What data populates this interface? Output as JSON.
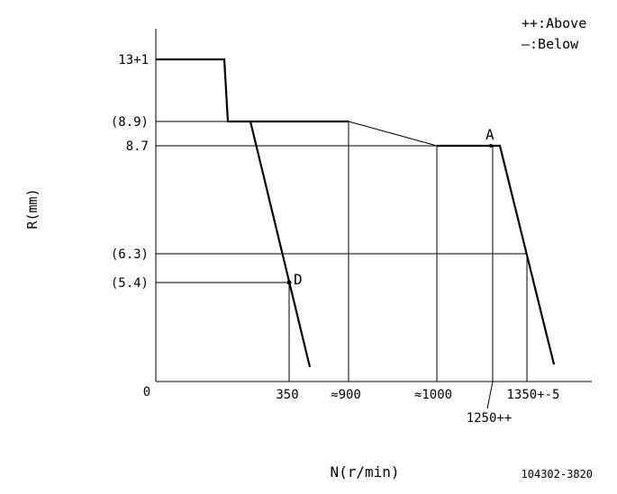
{
  "chart_data": {
    "type": "line",
    "title": "",
    "xlabel": "N(r/min)",
    "ylabel": "R(mm)",
    "y_ticks": [
      {
        "label": "13+1",
        "value": 13
      },
      {
        "label": "(8.9)",
        "value": 8.9
      },
      {
        "label": "8.7",
        "value": 8.7
      },
      {
        "label": "(6.3)",
        "value": 6.3
      },
      {
        "label": "(5.4)",
        "value": 5.4
      },
      {
        "label": "0",
        "value": 0
      }
    ],
    "x_ticks": [
      {
        "label": "350",
        "value": 350
      },
      {
        "label": "≈900",
        "value": 900
      },
      {
        "label": "≈1000",
        "value": 1000
      },
      {
        "label": "1250++",
        "value": 1250
      },
      {
        "label": "1350+-5",
        "value": 1350
      }
    ],
    "points": [
      {
        "label": "A",
        "x": 1250,
        "y": 8.7
      },
      {
        "label": "D",
        "x": 350,
        "y": 5.4
      }
    ],
    "legend": [
      "++:Above",
      "—:Below"
    ],
    "code": "104302-3820"
  }
}
